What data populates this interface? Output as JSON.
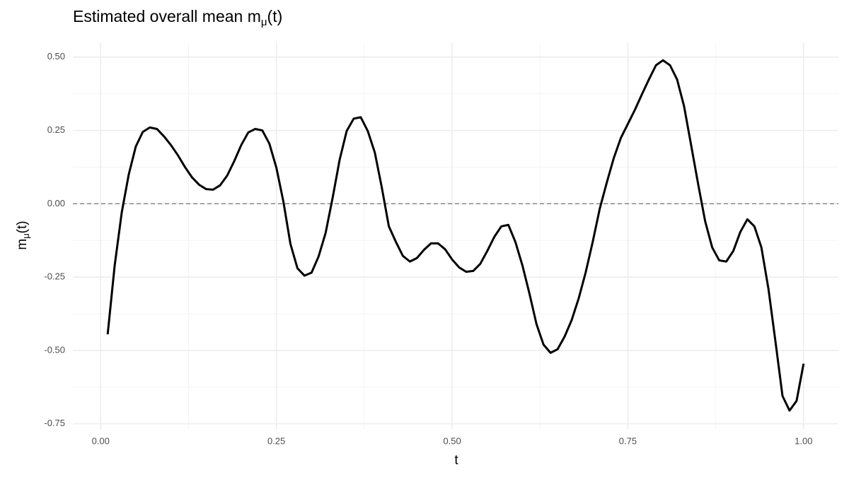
{
  "chart_data": {
    "type": "line",
    "title": [
      "Estimated overall mean m",
      "μ",
      "(t)"
    ],
    "x_label": "t",
    "y_label": [
      "m",
      "μ",
      "(t)"
    ],
    "x": [
      0.01,
      0.02,
      0.03,
      0.04,
      0.05,
      0.06,
      0.07,
      0.08,
      0.09,
      0.1,
      0.11,
      0.12,
      0.13,
      0.14,
      0.15,
      0.16,
      0.17,
      0.18,
      0.19,
      0.2,
      0.21,
      0.22,
      0.23,
      0.24,
      0.25,
      0.26,
      0.27,
      0.28,
      0.29,
      0.3,
      0.31,
      0.32,
      0.33,
      0.34,
      0.35,
      0.36,
      0.37,
      0.38,
      0.39,
      0.4,
      0.41,
      0.42,
      0.43,
      0.44,
      0.45,
      0.46,
      0.47,
      0.48,
      0.49,
      0.5,
      0.51,
      0.52,
      0.53,
      0.54,
      0.55,
      0.56,
      0.57,
      0.58,
      0.59,
      0.6,
      0.61,
      0.62,
      0.63,
      0.64,
      0.65,
      0.66,
      0.67,
      0.68,
      0.69,
      0.7,
      0.71,
      0.72,
      0.73,
      0.74,
      0.75,
      0.76,
      0.77,
      0.78,
      0.79,
      0.8,
      0.81,
      0.82,
      0.83,
      0.84,
      0.85,
      0.86,
      0.87,
      0.88,
      0.89,
      0.9,
      0.91,
      0.92,
      0.93,
      0.94,
      0.95,
      0.96,
      0.97,
      0.98,
      0.99,
      1.0
    ],
    "series": [
      {
        "name": "m",
        "color": "#000000",
        "values": [
          -0.445,
          -0.21,
          -0.03,
          0.1,
          0.195,
          0.245,
          0.26,
          0.255,
          0.23,
          0.2,
          0.165,
          0.125,
          0.09,
          0.065,
          0.05,
          0.048,
          0.063,
          0.096,
          0.145,
          0.2,
          0.243,
          0.255,
          0.25,
          0.205,
          0.123,
          0.007,
          -0.137,
          -0.22,
          -0.245,
          -0.235,
          -0.18,
          -0.1,
          0.02,
          0.15,
          0.248,
          0.29,
          0.295,
          0.248,
          0.175,
          0.055,
          -0.077,
          -0.13,
          -0.178,
          -0.197,
          -0.185,
          -0.157,
          -0.135,
          -0.135,
          -0.155,
          -0.19,
          -0.217,
          -0.232,
          -0.229,
          -0.205,
          -0.161,
          -0.113,
          -0.077,
          -0.072,
          -0.13,
          -0.21,
          -0.306,
          -0.41,
          -0.48,
          -0.508,
          -0.496,
          -0.453,
          -0.397,
          -0.323,
          -0.234,
          -0.13,
          -0.017,
          0.072,
          0.156,
          0.224,
          0.272,
          0.32,
          0.373,
          0.424,
          0.472,
          0.489,
          0.472,
          0.424,
          0.332,
          0.2,
          0.067,
          -0.06,
          -0.149,
          -0.193,
          -0.197,
          -0.161,
          -0.096,
          -0.053,
          -0.077,
          -0.149,
          -0.29,
          -0.47,
          -0.655,
          -0.705,
          -0.672,
          -0.545
        ]
      }
    ],
    "hline": 0,
    "xlim": [
      -0.0395,
      1.0495
    ],
    "ylim": [
      -0.77,
      0.55
    ],
    "xticks": [
      {
        "value": 0,
        "label": "0.00"
      },
      0.25,
      {
        "value": 0.5,
        "label": "0.50"
      },
      0.75,
      {
        "value": 1,
        "label": "1.00"
      }
    ],
    "yticks": [
      {
        "value": -0.75,
        "label": "-0.75"
      },
      {
        "value": -0.5,
        "label": "-0.50"
      },
      -0.25,
      {
        "value": 0,
        "label": "0.00"
      },
      0.25,
      {
        "value": 0.5,
        "label": "0.50"
      }
    ],
    "xminor": [
      0.125,
      0.375,
      0.625,
      0.875
    ],
    "yminor": [
      -0.625,
      -0.375,
      -0.125,
      0.125,
      0.375
    ],
    "grid": true
  }
}
